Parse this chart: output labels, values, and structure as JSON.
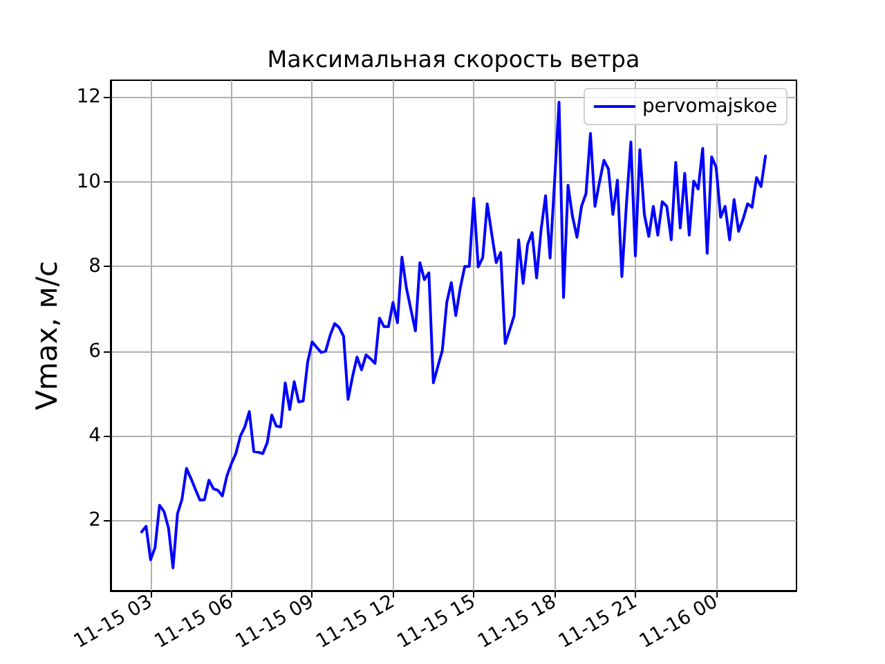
{
  "chart_data": {
    "type": "line",
    "title": "Максимальная скорость ветра",
    "ylabel": "Vmax, м/с",
    "x": [
      "--11-15T02:40",
      "--11-15T02:50",
      "--11-15T03:00",
      "--11-15T03:10",
      "--11-15T03:20",
      "--11-15T03:30",
      "--11-15T03:40",
      "--11-15T03:50",
      "--11-15T04:00",
      "--11-15T04:10",
      "--11-15T04:20",
      "--11-15T04:30",
      "--11-15T04:40",
      "--11-15T04:50",
      "--11-15T05:00",
      "--11-15T05:10",
      "--11-15T05:20",
      "--11-15T05:30",
      "--11-15T05:40",
      "--11-15T05:50",
      "--11-15T06:00",
      "--11-15T06:10",
      "--11-15T06:20",
      "--11-15T06:30",
      "--11-15T06:40",
      "--11-15T06:50",
      "--11-15T07:00",
      "--11-15T07:10",
      "--11-15T07:20",
      "--11-15T07:30",
      "--11-15T07:40",
      "--11-15T07:50",
      "--11-15T08:00",
      "--11-15T08:10",
      "--11-15T08:20",
      "--11-15T08:30",
      "--11-15T08:40",
      "--11-15T08:50",
      "--11-15T09:00",
      "--11-15T09:10",
      "--11-15T09:20",
      "--11-15T09:30",
      "--11-15T09:40",
      "--11-15T09:50",
      "--11-15T10:00",
      "--11-15T10:10",
      "--11-15T10:20",
      "--11-15T10:30",
      "--11-15T10:40",
      "--11-15T10:50",
      "--11-15T11:00",
      "--11-15T11:10",
      "--11-15T11:20",
      "--11-15T11:30",
      "--11-15T11:40",
      "--11-15T11:50",
      "--11-15T12:00",
      "--11-15T12:10",
      "--11-15T12:20",
      "--11-15T12:30",
      "--11-15T12:40",
      "--11-15T12:50",
      "--11-15T13:00",
      "--11-15T13:10",
      "--11-15T13:20",
      "--11-15T13:30",
      "--11-15T13:40",
      "--11-15T13:50",
      "--11-15T14:00",
      "--11-15T14:10",
      "--11-15T14:20",
      "--11-15T14:30",
      "--11-15T14:40",
      "--11-15T14:50",
      "--11-15T15:00",
      "--11-15T15:10",
      "--11-15T15:20",
      "--11-15T15:30",
      "--11-15T15:40",
      "--11-15T15:50",
      "--11-15T16:00",
      "--11-15T16:10",
      "--11-15T16:20",
      "--11-15T16:30",
      "--11-15T16:40",
      "--11-15T16:50",
      "--11-15T17:00",
      "--11-15T17:10",
      "--11-15T17:20",
      "--11-15T17:30",
      "--11-15T17:40",
      "--11-15T17:50",
      "--11-15T18:00",
      "--11-15T18:10",
      "--11-15T18:20",
      "--11-15T18:30",
      "--11-15T18:40",
      "--11-15T18:50",
      "--11-15T19:00",
      "--11-15T19:10",
      "--11-15T19:20",
      "--11-15T19:30",
      "--11-15T19:40",
      "--11-15T19:50",
      "--11-15T20:00",
      "--11-15T20:10",
      "--11-15T20:20",
      "--11-15T20:30",
      "--11-15T20:40",
      "--11-15T20:50",
      "--11-15T21:00",
      "--11-15T21:10",
      "--11-15T21:20",
      "--11-15T21:30",
      "--11-15T21:40",
      "--11-15T21:50",
      "--11-15T22:00",
      "--11-15T22:10",
      "--11-15T22:20",
      "--11-15T22:30",
      "--11-15T22:40",
      "--11-15T22:50",
      "--11-15T23:00",
      "--11-15T23:10",
      "--11-15T23:20",
      "--11-15T23:30",
      "--11-15T23:40",
      "--11-15T23:50",
      "--11-16T00:00",
      "--11-16T00:10",
      "--11-16T00:20",
      "--11-16T00:30",
      "--11-16T00:40",
      "--11-16T00:50",
      "--11-16T01:00",
      "--11-16T01:10",
      "--11-16T01:20",
      "--11-16T01:30",
      "--11-16T01:40",
      "--11-16T01:50"
    ],
    "series": [
      {
        "name": "pervomajskoe",
        "color": "#0000ff",
        "values": [
          1.73,
          1.86,
          1.07,
          1.36,
          2.36,
          2.21,
          1.82,
          0.88,
          2.16,
          2.5,
          3.23,
          2.99,
          2.73,
          2.48,
          2.49,
          2.95,
          2.75,
          2.71,
          2.58,
          3.05,
          3.34,
          3.58,
          3.99,
          4.21,
          4.57,
          3.63,
          3.61,
          3.58,
          3.84,
          4.49,
          4.23,
          4.21,
          5.25,
          4.62,
          5.28,
          4.8,
          4.82,
          5.74,
          6.22,
          6.09,
          5.97,
          6,
          6.37,
          6.65,
          6.56,
          6.35,
          4.86,
          5.4,
          5.86,
          5.56,
          5.91,
          5.82,
          5.71,
          6.78,
          6.58,
          6.58,
          7.15,
          6.67,
          8.22,
          7.49,
          6.98,
          6.48,
          8.09,
          7.69,
          7.85,
          5.25,
          5.64,
          6.02,
          7.16,
          7.62,
          6.84,
          7.5,
          8,
          8,
          9.61,
          7.99,
          8.21,
          9.48,
          8.77,
          8.09,
          8.33,
          6.18,
          6.5,
          6.84,
          8.63,
          7.6,
          8.52,
          8.8,
          7.73,
          8.87,
          9.67,
          8.2,
          10,
          11.88,
          7.27,
          9.92,
          9.18,
          8.69,
          9.42,
          9.72,
          11.14,
          9.42,
          9.99,
          10.51,
          10.3,
          9.23,
          10.04,
          7.76,
          9.45,
          10.94,
          8.25,
          10.76,
          9.23,
          8.71,
          9.42,
          8.74,
          9.53,
          9.42,
          8.63,
          10.46,
          8.91,
          10.2,
          8.74,
          10.02,
          9.83,
          10.79,
          8.31,
          10.59,
          10.34,
          9.16,
          9.42,
          8.63,
          9.58,
          8.83,
          9.12,
          9.48,
          9.4,
          10.1,
          9.89,
          10.61
        ]
      }
    ],
    "xlim": [
      "--11-15T01:31",
      "--11-16T02:59"
    ],
    "xticks": [
      {
        "value": "--11-15T03:00",
        "label": "11-15 03"
      },
      {
        "value": "--11-15T06:00",
        "label": "11-15 06"
      },
      {
        "value": "--11-15T09:00",
        "label": "11-15 09"
      },
      {
        "value": "--11-15T12:00",
        "label": "11-15 12"
      },
      {
        "value": "--11-15T15:00",
        "label": "11-15 15"
      },
      {
        "value": "--11-15T18:00",
        "label": "11-15 18"
      },
      {
        "value": "--11-15T21:00",
        "label": "11-15 21"
      },
      {
        "value": "--11-16T00:00",
        "label": "11-16 00"
      }
    ],
    "ylim": [
      0.34,
      12.4
    ],
    "yticks": [
      2,
      4,
      6,
      8,
      10,
      12
    ],
    "grid": true,
    "legend": "top right",
    "marker": "none"
  }
}
